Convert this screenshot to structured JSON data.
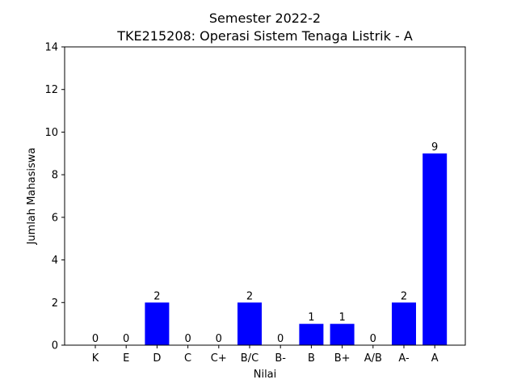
{
  "chart_data": {
    "type": "bar",
    "title_line1": "Semester 2022-2",
    "title_line2": "TKE215208: Operasi Sistem Tenaga Listrik - A",
    "xlabel": "Nilai",
    "ylabel": "Jumlah Mahasiswa",
    "categories": [
      "K",
      "E",
      "D",
      "C",
      "C+",
      "B/C",
      "B-",
      "B",
      "B+",
      "A/B",
      "A-",
      "A"
    ],
    "values": [
      0,
      0,
      2,
      0,
      0,
      2,
      0,
      1,
      1,
      0,
      2,
      9
    ],
    "data_labels": [
      "0",
      "0",
      "2",
      "0",
      "0",
      "2",
      "0",
      "1",
      "1",
      "0",
      "2",
      "9"
    ],
    "ylim": [
      0,
      14
    ],
    "yticks": [
      0,
      2,
      4,
      6,
      8,
      10,
      12,
      14
    ],
    "ytick_labels": [
      "0",
      "2",
      "4",
      "6",
      "8",
      "10",
      "12",
      "14"
    ],
    "bar_color": "#0000ff",
    "grid": false,
    "legend": "none"
  }
}
